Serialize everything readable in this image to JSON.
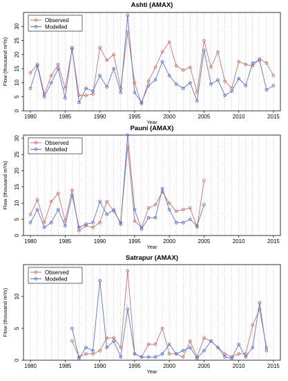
{
  "chart_data": [
    {
      "type": "line",
      "title": "Ashti (AMAX)",
      "xlabel": "Year",
      "ylabel": "Flow (thousand m³/s)",
      "xlim": [
        1979,
        2016
      ],
      "ylim": [
        0,
        35
      ],
      "yticks": [
        0,
        5,
        10,
        15,
        20,
        25,
        30
      ],
      "xticks": [
        1980,
        1985,
        1990,
        1995,
        2000,
        2005,
        2010,
        2015
      ],
      "grid": "vertical dotted per year",
      "legend_position": "top-left",
      "series": [
        {
          "name": "Observed",
          "color": "#c87070",
          "x": [
            1980,
            1981,
            1982,
            1983,
            1984,
            1985,
            1986,
            1987,
            1988,
            1989,
            1990,
            1991,
            1992,
            1993,
            1994,
            1995,
            1996,
            1997,
            1998,
            1999,
            2000,
            2001,
            2002,
            2003,
            2004,
            2005,
            2006,
            2007,
            2008,
            2009,
            2010,
            2011,
            2012,
            2013,
            2014,
            2015
          ],
          "y": [
            13.5,
            16.5,
            6.0,
            12.5,
            16.5,
            8.0,
            22.0,
            5.5,
            5.5,
            6.0,
            22.5,
            18.0,
            20.0,
            8.0,
            28.0,
            10.0,
            2.5,
            10.5,
            15.5,
            21.0,
            24.5,
            16.0,
            14.5,
            15.5,
            6.5,
            25.0,
            15.5,
            21.0,
            10.5,
            8.0,
            17.5,
            16.5,
            16.0,
            18.5,
            17.0,
            12.5
          ]
        },
        {
          "name": "Modelled",
          "color": "#5a6fd6",
          "x": [
            1980,
            1981,
            1982,
            1983,
            1984,
            1985,
            1986,
            1987,
            1988,
            1989,
            1990,
            1991,
            1992,
            1993,
            1994,
            1995,
            1996,
            1997,
            1998,
            1999,
            2000,
            2001,
            2002,
            2003,
            2004,
            2005,
            2006,
            2007,
            2008,
            2009,
            2010,
            2011,
            2012,
            2013,
            2014,
            2015
          ],
          "y": [
            8.0,
            16.0,
            5.0,
            10.0,
            15.0,
            4.5,
            22.5,
            3.0,
            8.0,
            7.0,
            12.5,
            8.5,
            15.0,
            6.5,
            34.0,
            6.5,
            3.0,
            9.0,
            11.0,
            17.5,
            12.5,
            9.5,
            8.0,
            10.0,
            3.5,
            21.5,
            9.5,
            11.0,
            5.5,
            7.0,
            11.5,
            9.0,
            17.0,
            18.0,
            7.5,
            9.0
          ]
        }
      ]
    },
    {
      "type": "line",
      "title": "Pauni (AMAX)",
      "xlabel": "Year",
      "ylabel": "Flow (thousand m³/s)",
      "xlim": [
        1979,
        2016
      ],
      "ylim": [
        0,
        31
      ],
      "yticks": [
        0,
        5,
        10,
        15,
        20,
        25,
        30
      ],
      "xticks": [
        1980,
        1985,
        1990,
        1995,
        2000,
        2005,
        2010,
        2015
      ],
      "grid": "vertical dotted per year",
      "legend_position": "top-left",
      "series": [
        {
          "name": "Observed",
          "color": "#c87070",
          "x": [
            1980,
            1981,
            1982,
            1983,
            1984,
            1985,
            1986,
            1987,
            1988,
            1989,
            1990,
            1991,
            1992,
            1993,
            1994,
            1995,
            1996,
            1997,
            1998,
            1999,
            2000,
            2001,
            2002,
            2003,
            2004,
            2005
          ],
          "y": [
            6.5,
            11.0,
            4.0,
            10.5,
            13.0,
            4.5,
            14.0,
            1.5,
            3.0,
            2.5,
            4.0,
            10.5,
            7.5,
            4.0,
            27.5,
            4.5,
            2.5,
            8.5,
            9.5,
            13.5,
            10.0,
            7.5,
            8.0,
            8.5,
            2.5,
            17.0
          ]
        },
        {
          "name": "Modelled",
          "color": "#5a6fd6",
          "x": [
            1980,
            1981,
            1982,
            1983,
            1984,
            1985,
            1986,
            1987,
            1988,
            1989,
            1990,
            1991,
            1992,
            1993,
            1994,
            1995,
            1996,
            1997,
            1998,
            1999,
            2000,
            2001,
            2002,
            2003,
            2004,
            2005
          ],
          "y": [
            4.0,
            8.0,
            2.5,
            4.0,
            8.0,
            3.0,
            12.5,
            2.5,
            3.5,
            4.0,
            10.5,
            6.5,
            8.0,
            3.5,
            31.0,
            8.0,
            2.0,
            5.5,
            5.5,
            14.5,
            8.0,
            4.0,
            4.0,
            5.0,
            3.0,
            9.5
          ]
        }
      ]
    },
    {
      "type": "line",
      "title": "Satrapur (AMAX)",
      "xlabel": "Year",
      "ylabel": "Flow (thousand m³/s)",
      "xlim": [
        1979,
        2016
      ],
      "ylim": [
        0,
        15
      ],
      "yticks": [
        0,
        5,
        10
      ],
      "xticks": [
        1980,
        1985,
        1990,
        1995,
        2000,
        2005,
        2010,
        2015
      ],
      "grid": "vertical dotted per year",
      "legend_position": "top-left",
      "series": [
        {
          "name": "Observed",
          "color": "#c87070",
          "x": [
            1986,
            1987,
            1988,
            1989,
            1990,
            1991,
            1992,
            1993,
            1994,
            1995,
            1996,
            1997,
            1998,
            1999,
            2000,
            2001,
            2002,
            2003,
            2004,
            2005,
            2006,
            2007,
            2008,
            2009,
            2010,
            2011,
            2012,
            2013,
            2014
          ],
          "y": [
            3.0,
            0.5,
            1.0,
            1.0,
            1.5,
            3.5,
            3.5,
            2.0,
            14.0,
            1.0,
            0.5,
            2.5,
            2.5,
            5.0,
            1.0,
            1.0,
            0.5,
            3.0,
            0.5,
            3.5,
            3.0,
            2.0,
            1.0,
            0.5,
            1.0,
            1.0,
            5.5,
            8.0,
            2.0
          ]
        },
        {
          "name": "Modelled",
          "color": "#5a6fd6",
          "x": [
            1986,
            1987,
            1988,
            1989,
            1990,
            1991,
            1992,
            1993,
            1994,
            1995,
            1996,
            1997,
            1998,
            1999,
            2000,
            2001,
            2002,
            2003,
            2004,
            2005,
            2006,
            2007,
            2008,
            2009,
            2010,
            2011,
            2012,
            2013,
            2014
          ],
          "y": [
            5.0,
            0.3,
            2.0,
            1.5,
            12.5,
            2.0,
            3.0,
            0.5,
            8.0,
            1.0,
            0.5,
            0.5,
            0.5,
            1.0,
            2.5,
            1.0,
            1.5,
            2.0,
            0.3,
            1.5,
            3.0,
            2.0,
            0.5,
            0.3,
            2.5,
            0.5,
            2.0,
            9.0,
            1.5
          ]
        }
      ]
    }
  ]
}
